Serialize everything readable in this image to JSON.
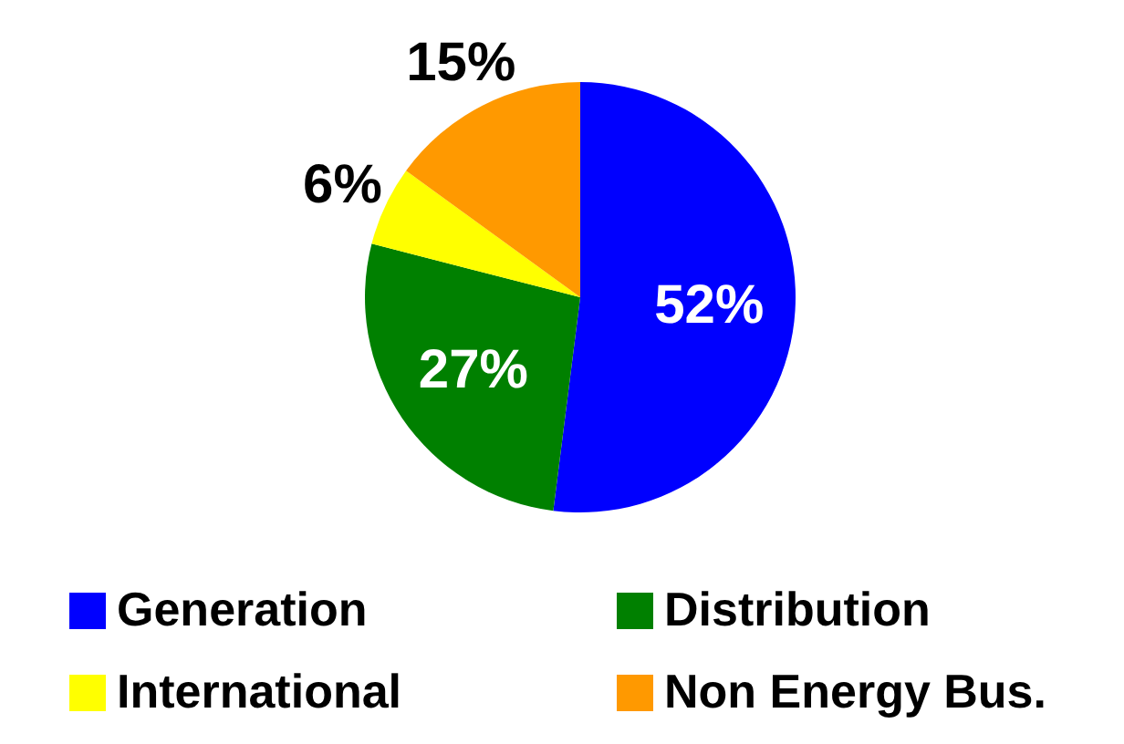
{
  "chart_data": {
    "type": "pie",
    "categories": [
      "Generation",
      "Distribution",
      "International",
      "Non Energy Bus."
    ],
    "values": [
      52,
      27,
      6,
      15
    ],
    "colors": [
      "#0000ff",
      "#008000",
      "#ffff00",
      "#ff9900"
    ],
    "value_labels": [
      "52%",
      "27%",
      "6%",
      "15%"
    ],
    "legend": "bottom"
  }
}
